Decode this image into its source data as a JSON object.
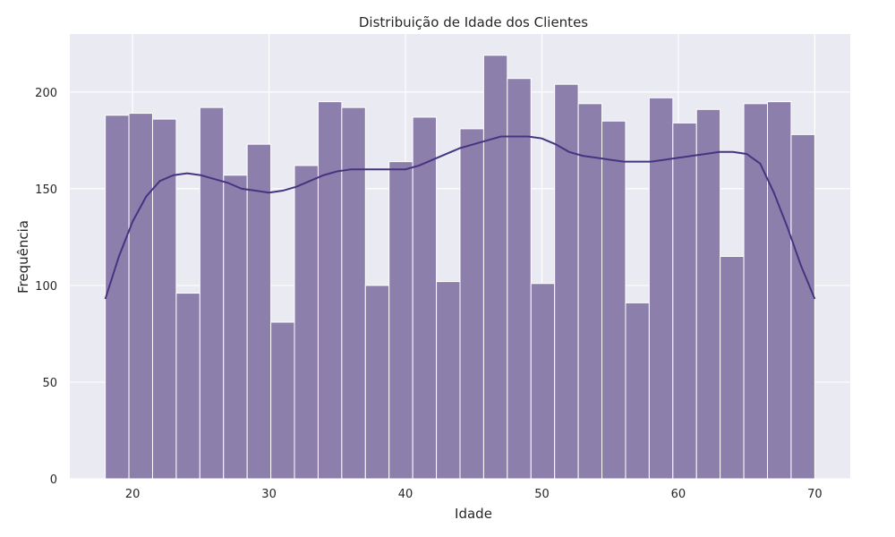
{
  "chart_data": {
    "type": "bar",
    "subtype": "histogram_with_kde",
    "title": "Distribuição de Idade dos Clientes",
    "xlabel": "Idade",
    "ylabel": "Frequência",
    "xlim": [
      15.4,
      72.6
    ],
    "ylim": [
      0,
      230
    ],
    "xticks": [
      20,
      30,
      40,
      50,
      60,
      70
    ],
    "yticks": [
      0,
      50,
      100,
      150,
      200
    ],
    "grid": true,
    "bin_start": 18,
    "bin_width": 1.7333,
    "values": [
      188,
      189,
      186,
      96,
      192,
      157,
      173,
      81,
      162,
      195,
      192,
      100,
      164,
      187,
      102,
      181,
      219,
      207,
      101,
      204,
      194,
      185,
      91,
      197,
      184,
      191,
      115,
      194,
      195,
      178
    ],
    "kde": {
      "x": [
        18,
        19,
        20,
        21,
        22,
        23,
        24,
        25,
        26,
        27,
        28,
        29,
        30,
        31,
        32,
        33,
        34,
        35,
        36,
        37,
        38,
        39,
        40,
        41,
        42,
        43,
        44,
        45,
        46,
        47,
        48,
        49,
        50,
        51,
        52,
        53,
        54,
        55,
        56,
        57,
        58,
        59,
        60,
        61,
        62,
        63,
        64,
        65,
        66,
        67,
        68,
        69,
        70
      ],
      "y": [
        93,
        115,
        133,
        146,
        154,
        157,
        158,
        157,
        155,
        153,
        150,
        149,
        148,
        149,
        151,
        154,
        157,
        159,
        160,
        160,
        160,
        160,
        160,
        162,
        165,
        168,
        171,
        173,
        175,
        177,
        177,
        177,
        176,
        173,
        169,
        167,
        166,
        165,
        164,
        164,
        164,
        165,
        166,
        167,
        168,
        169,
        169,
        168,
        163,
        148,
        130,
        110,
        93
      ]
    },
    "colors": {
      "background": "#eaeaf2",
      "grid": "#ffffff",
      "bar_fill": "#8d7fac",
      "bar_stroke": "#ffffff",
      "kde_line": "#463480"
    }
  }
}
